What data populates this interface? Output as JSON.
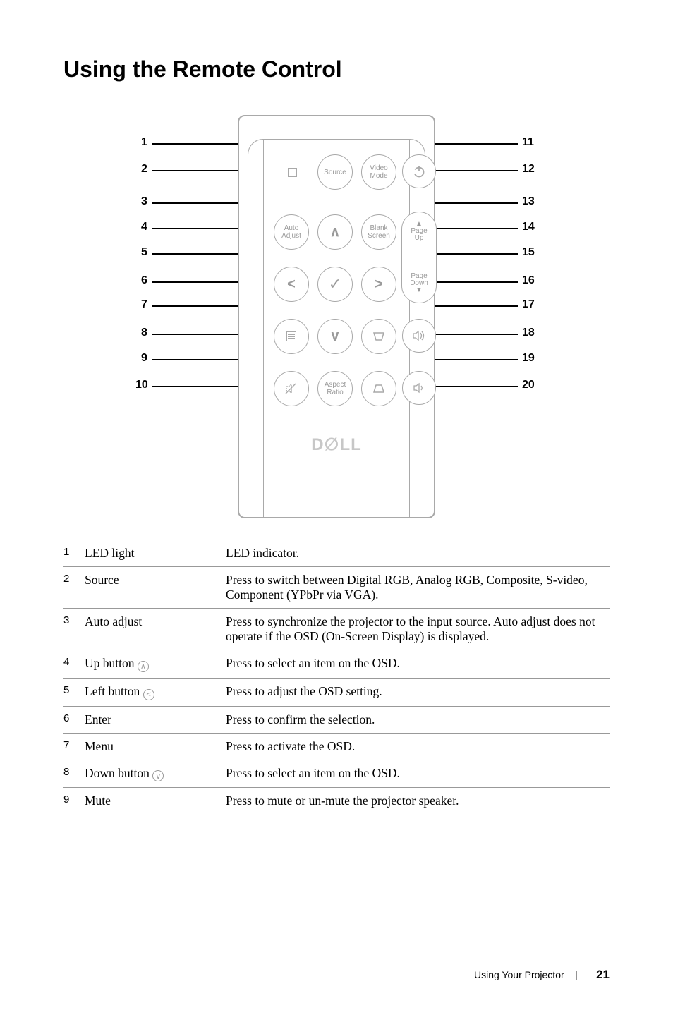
{
  "heading": "Using the Remote Control",
  "diagram": {
    "buttons": {
      "source": "Source",
      "video_mode": "Video\nMode",
      "auto_adjust": "Auto\nAdjust",
      "blank_screen": "Blank\nScreen",
      "page_up": "Page\nUp",
      "page_down": "Page\nDown",
      "aspect_ratio": "Aspect\nRatio"
    },
    "logo": "D∅LL",
    "callouts_left": [
      "1",
      "2",
      "3",
      "4",
      "5",
      "6",
      "7",
      "8",
      "9",
      "10"
    ],
    "callouts_right": [
      "11",
      "12",
      "13",
      "14",
      "15",
      "16",
      "17",
      "18",
      "19",
      "20"
    ],
    "colors": {
      "stroke": "#a9a9a9",
      "text": "#9a9a9a"
    }
  },
  "table": {
    "rows": [
      {
        "n": "1",
        "name": "LED light",
        "desc": "LED indicator."
      },
      {
        "n": "2",
        "name": "Source",
        "desc": "Press to switch between Digital RGB, Analog RGB, Composite, S-video, Component (YPbPr via VGA)."
      },
      {
        "n": "3",
        "name": "Auto adjust",
        "desc": "Press to synchronize the projector to the input source. Auto adjust does not operate if the OSD (On-Screen Display) is displayed."
      },
      {
        "n": "4",
        "name": "Up button ",
        "glyph": "∧",
        "desc": "Press to select an item on the OSD."
      },
      {
        "n": "5",
        "name": "Left button ",
        "glyph": "<",
        "desc": "Press to adjust the OSD setting."
      },
      {
        "n": "6",
        "name": "Enter",
        "desc": "Press to confirm the selection."
      },
      {
        "n": "7",
        "name": "Menu",
        "desc": "Press to activate the OSD."
      },
      {
        "n": "8",
        "name": "Down button ",
        "glyph": "∨",
        "desc": "Press to select an item on the OSD."
      },
      {
        "n": "9",
        "name": "Mute",
        "desc": "Press to mute or un-mute the projector speaker."
      }
    ]
  },
  "footer": {
    "section": "Using Your Projector",
    "page": "21"
  }
}
